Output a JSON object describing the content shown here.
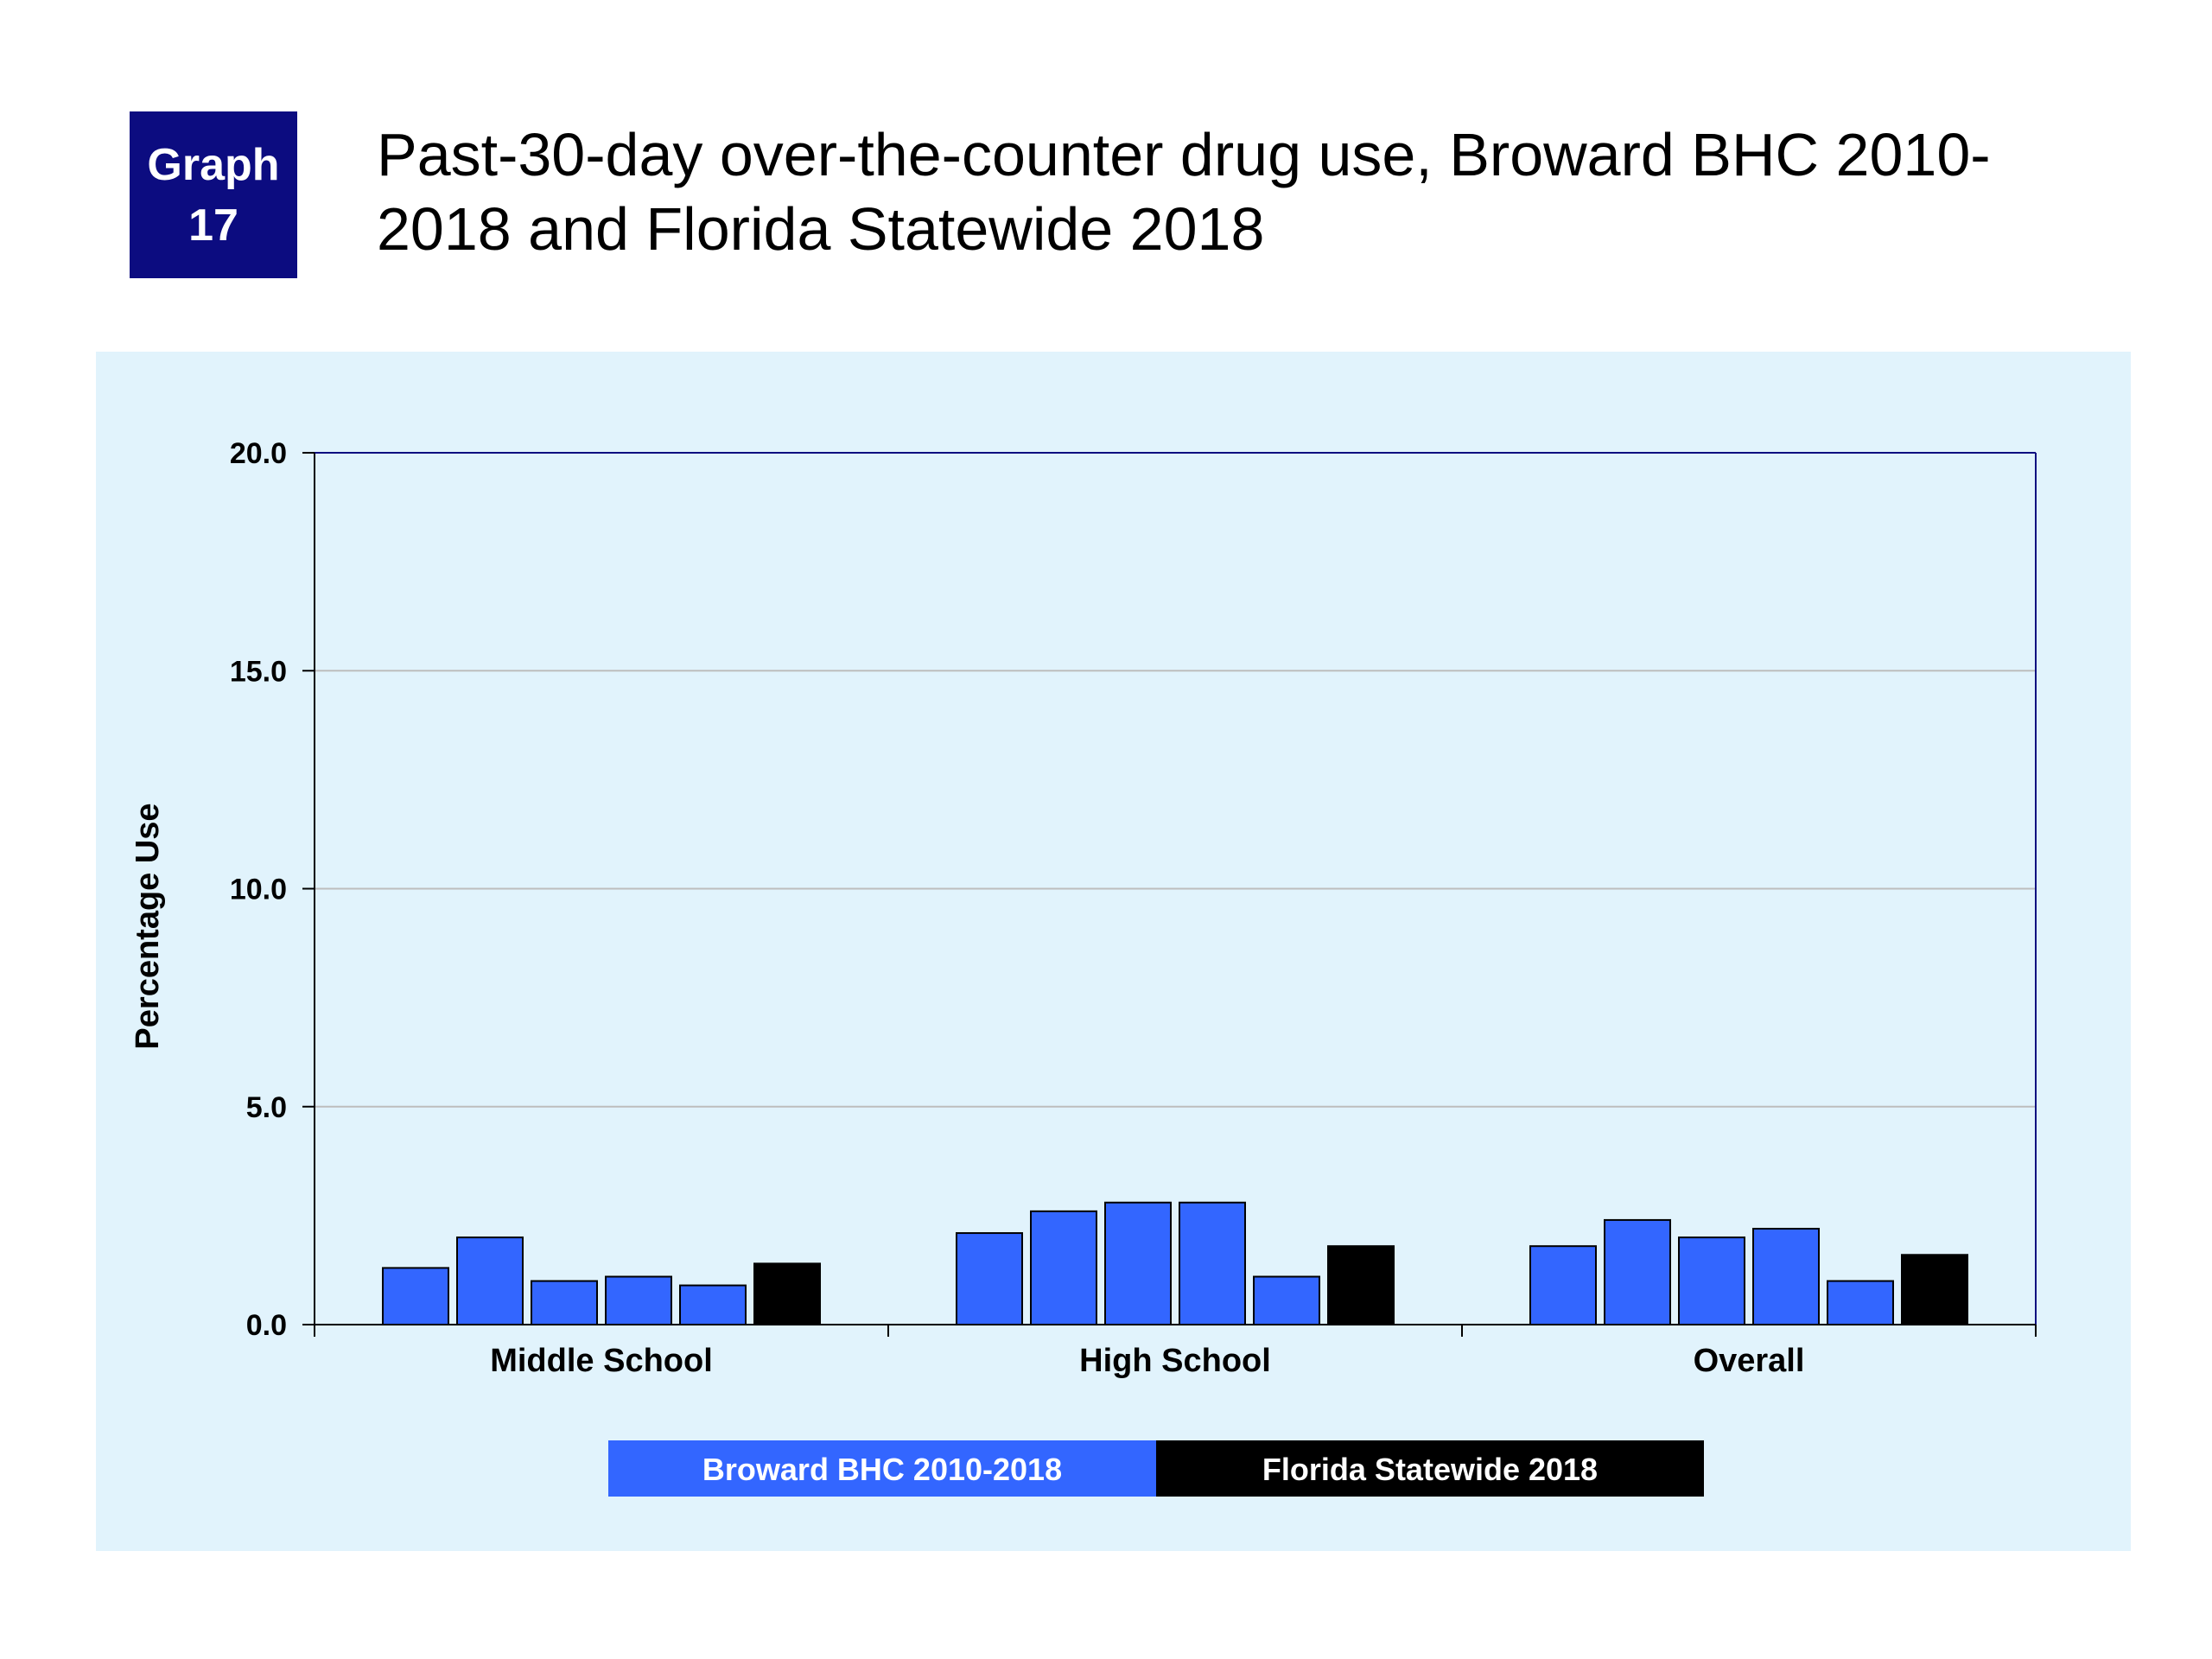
{
  "badge": {
    "line1": "Graph",
    "line2": "17"
  },
  "title": "Past-30-day over-the-counter drug use, Broward BHC 2010-2018 and Florida Statewide 2018",
  "colors": {
    "broward": "#3366ff",
    "florida": "#000000",
    "background": "#e1f3fc",
    "badge": "#0c0c80",
    "axis": "#0c0c80"
  },
  "chart_data": {
    "type": "bar",
    "title": "Past-30-day over-the-counter drug use, Broward BHC 2010-2018 and Florida Statewide 2018",
    "ylabel": "Percentage Use",
    "xlabel": "",
    "ylim": [
      0,
      20
    ],
    "yticks": [
      "0.0",
      "5.0",
      "10.0",
      "15.0",
      "20.0"
    ],
    "grid": true,
    "legend_position": "bottom",
    "categories": [
      "Middle School",
      "High School",
      "Overall"
    ],
    "series": [
      {
        "name": "Broward BHC 2010-2018",
        "color": "#3366ff",
        "groups": [
          [
            1.3,
            2.0,
            1.0,
            1.1,
            0.9
          ],
          [
            2.1,
            2.6,
            2.8,
            2.8,
            1.1
          ],
          [
            1.8,
            2.4,
            2.0,
            2.2,
            1.0
          ]
        ]
      },
      {
        "name": "Florida Statewide 2018",
        "color": "#000000",
        "groups": [
          [
            1.4
          ],
          [
            1.8
          ],
          [
            1.6
          ]
        ]
      }
    ]
  }
}
